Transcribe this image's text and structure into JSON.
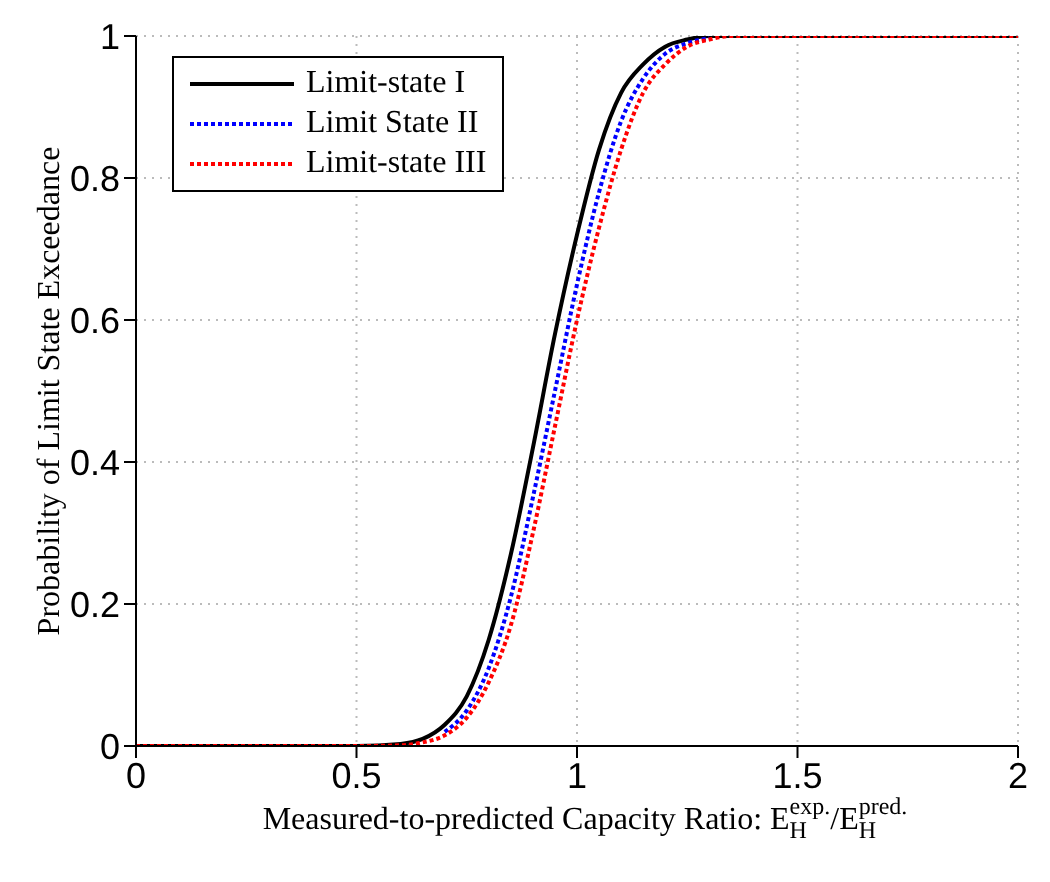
{
  "chart_data": {
    "type": "line",
    "xlabel": "Measured-to-predicted Capacity Ratio: E$_{H}$$^{exp.}$/E$_{H}$$^{pred.}$",
    "ylabel": "Probability of Limit State Exceedance",
    "xlim": [
      0,
      2
    ],
    "xticks": [
      0,
      0.5,
      1,
      1.5,
      2
    ],
    "ylim": [
      0,
      1
    ],
    "yticks": [
      0,
      0.2,
      0.4,
      0.6,
      0.8,
      1
    ],
    "grid": true,
    "legend": "top left",
    "marker": "none",
    "series": [
      {
        "name": "Limit-state I",
        "color": "#000000",
        "line_style": "solid",
        "x": [
          0,
          0.5,
          0.6,
          0.65,
          0.7,
          0.75,
          0.8,
          0.85,
          0.9,
          0.95,
          1.0,
          1.05,
          1.1,
          1.15,
          1.2,
          1.25,
          1.3,
          2
        ],
        "values": [
          0,
          0,
          0.003,
          0.01,
          0.03,
          0.07,
          0.15,
          0.27,
          0.42,
          0.58,
          0.72,
          0.84,
          0.92,
          0.96,
          0.985,
          0.995,
          1,
          1
        ]
      },
      {
        "name": "Limit State II",
        "color": "#0000ff",
        "line_style": "dotted",
        "x": [
          0.7,
          0.75,
          0.8,
          0.85,
          0.9,
          0.95,
          1.0,
          1.05,
          1.1,
          1.15,
          1.2,
          1.25,
          1.3
        ],
        "values": [
          0.02,
          0.05,
          0.11,
          0.21,
          0.35,
          0.5,
          0.65,
          0.78,
          0.88,
          0.94,
          0.975,
          0.99,
          0.997
        ]
      },
      {
        "name": "Limit-state III",
        "color": "#ff0000",
        "line_style": "dotted",
        "x": [
          0,
          0.5,
          0.6,
          0.65,
          0.7,
          0.75,
          0.8,
          0.85,
          0.9,
          0.95,
          1.0,
          1.05,
          1.1,
          1.15,
          1.2,
          1.25,
          1.3,
          1.35,
          2
        ],
        "values": [
          0,
          0,
          0.001,
          0.005,
          0.015,
          0.04,
          0.09,
          0.17,
          0.3,
          0.45,
          0.6,
          0.73,
          0.84,
          0.92,
          0.96,
          0.985,
          0.995,
          1,
          1
        ]
      }
    ]
  }
}
